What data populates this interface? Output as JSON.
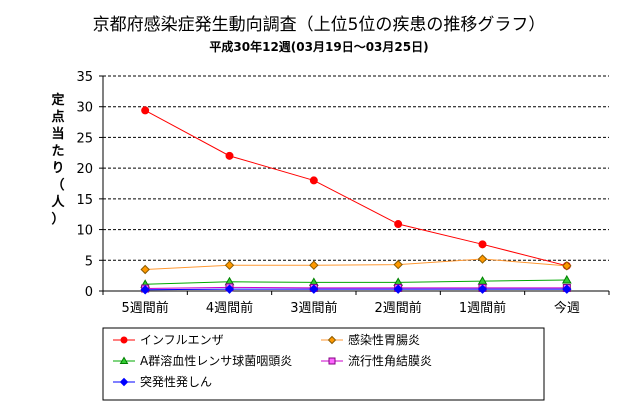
{
  "chart_data": {
    "type": "line",
    "title": "京都府感染症発生動向調査（上位5位の疾患の推移グラフ）",
    "subtitle": "平成30年12週(03月19日～03月25日)",
    "ylabel": "定点当たり（人）",
    "ylim": [
      0,
      35
    ],
    "yticks": [
      0,
      5,
      10,
      15,
      20,
      25,
      30,
      35
    ],
    "grid": true,
    "legend_position": "bottom",
    "categories": [
      "5週間前",
      "4週間前",
      "3週間前",
      "2週間前",
      "1週間前",
      "今週"
    ],
    "series": [
      {
        "name": "インフルエンザ",
        "color": "#ff0000",
        "marker": "circle",
        "marker_color": "#ff0000",
        "values": [
          29.4,
          22.0,
          18.0,
          10.9,
          7.6,
          4.1
        ]
      },
      {
        "name": "感染性胃腸炎",
        "color": "#ff9933",
        "marker": "diamond",
        "marker_color": "#ff9900",
        "values": [
          3.5,
          4.2,
          4.2,
          4.3,
          5.2,
          4.1
        ]
      },
      {
        "name": "A群溶血性レンサ球菌咽頭炎",
        "color": "#00aa00",
        "marker": "triangle",
        "marker_color": "#33cc33",
        "values": [
          1.1,
          1.5,
          1.4,
          1.4,
          1.6,
          1.8
        ]
      },
      {
        "name": "流行性角結膜炎",
        "color": "#cc00cc",
        "marker": "square",
        "marker_color": "#ff66ff",
        "values": [
          0.4,
          0.6,
          0.5,
          0.5,
          0.5,
          0.5
        ]
      },
      {
        "name": "突発性発しん",
        "color": "#0000ff",
        "marker": "diamond",
        "marker_color": "#0000ff",
        "values": [
          0.2,
          0.3,
          0.3,
          0.3,
          0.3,
          0.3
        ]
      }
    ]
  }
}
